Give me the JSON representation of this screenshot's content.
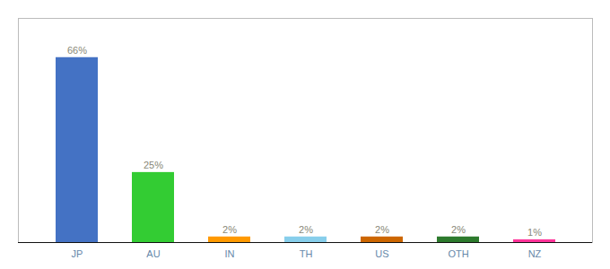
{
  "chart_data": {
    "type": "bar",
    "categories": [
      "JP",
      "AU",
      "IN",
      "TH",
      "US",
      "OTH",
      "NZ"
    ],
    "values": [
      66,
      25,
      2,
      2,
      2,
      2,
      1
    ],
    "value_labels": [
      "66%",
      "25%",
      "2%",
      "2%",
      "2%",
      "2%",
      "1%"
    ],
    "colors": [
      "#4472c4",
      "#33cc33",
      "#ff9900",
      "#87ceeb",
      "#cc6600",
      "#2d7a2d",
      "#ff3399"
    ],
    "data_labels": true,
    "ylim": [
      0,
      80
    ],
    "tick_labels": "x",
    "grid": false
  }
}
